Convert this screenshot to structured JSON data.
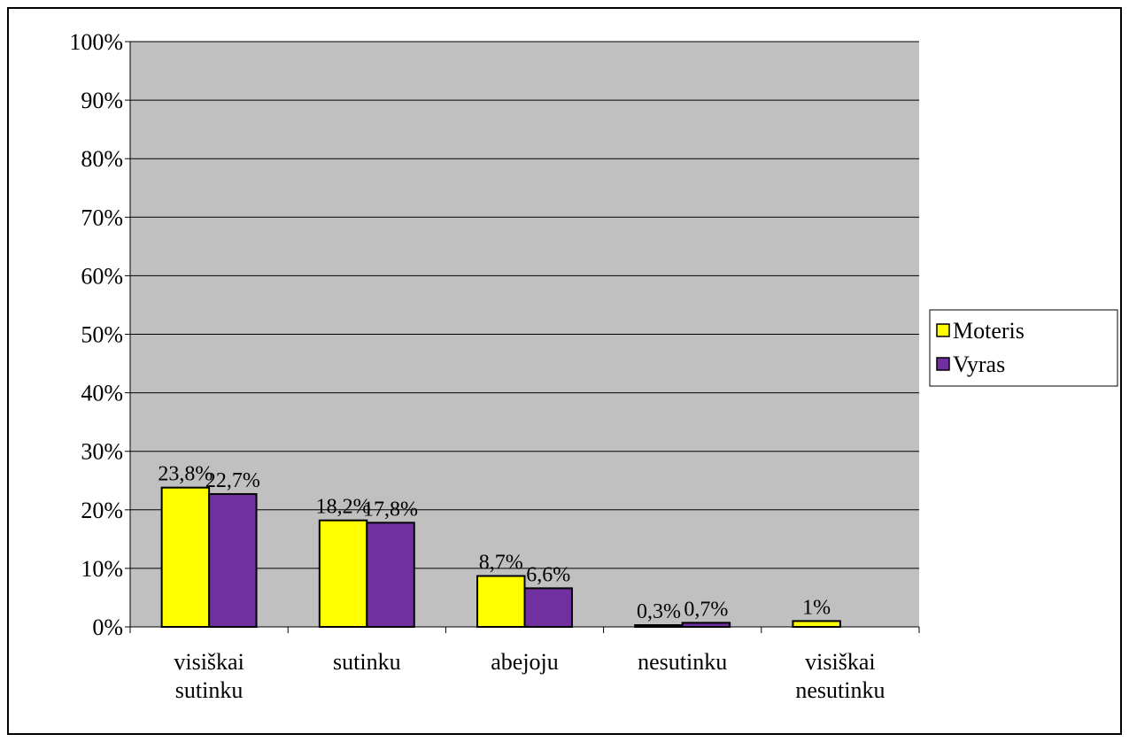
{
  "chart_data": {
    "type": "bar",
    "categories": [
      "visiškai\nsutinku",
      "sutinku",
      "abejoju",
      "nesutinku",
      "visiškai\nnesutinku"
    ],
    "series": [
      {
        "name": "Moteris",
        "color": "#ffff00",
        "values": [
          23.8,
          18.2,
          8.7,
          0.3,
          1
        ],
        "value_labels": [
          "23,8%",
          "18,2%",
          "8,7%",
          "0,3%",
          "1%"
        ]
      },
      {
        "name": "Vyras",
        "color": "#7030a0",
        "values": [
          22.7,
          17.8,
          6.6,
          0.7,
          null
        ],
        "value_labels": [
          "22,7%",
          "17,8%",
          "6,6%",
          "0,7%",
          null
        ]
      }
    ],
    "ylim": [
      0,
      100
    ],
    "yticks": [
      {
        "value": 0,
        "label": "0%"
      },
      {
        "value": 10,
        "label": "10%"
      },
      {
        "value": 20,
        "label": "20%"
      },
      {
        "value": 30,
        "label": "30%"
      },
      {
        "value": 40,
        "label": "40%"
      },
      {
        "value": 50,
        "label": "50%"
      },
      {
        "value": 60,
        "label": "60%"
      },
      {
        "value": 70,
        "label": "70%"
      },
      {
        "value": 80,
        "label": "80%"
      },
      {
        "value": 90,
        "label": "90%"
      },
      {
        "value": 100,
        "label": "100%"
      }
    ],
    "grid": true,
    "legend": "right"
  }
}
